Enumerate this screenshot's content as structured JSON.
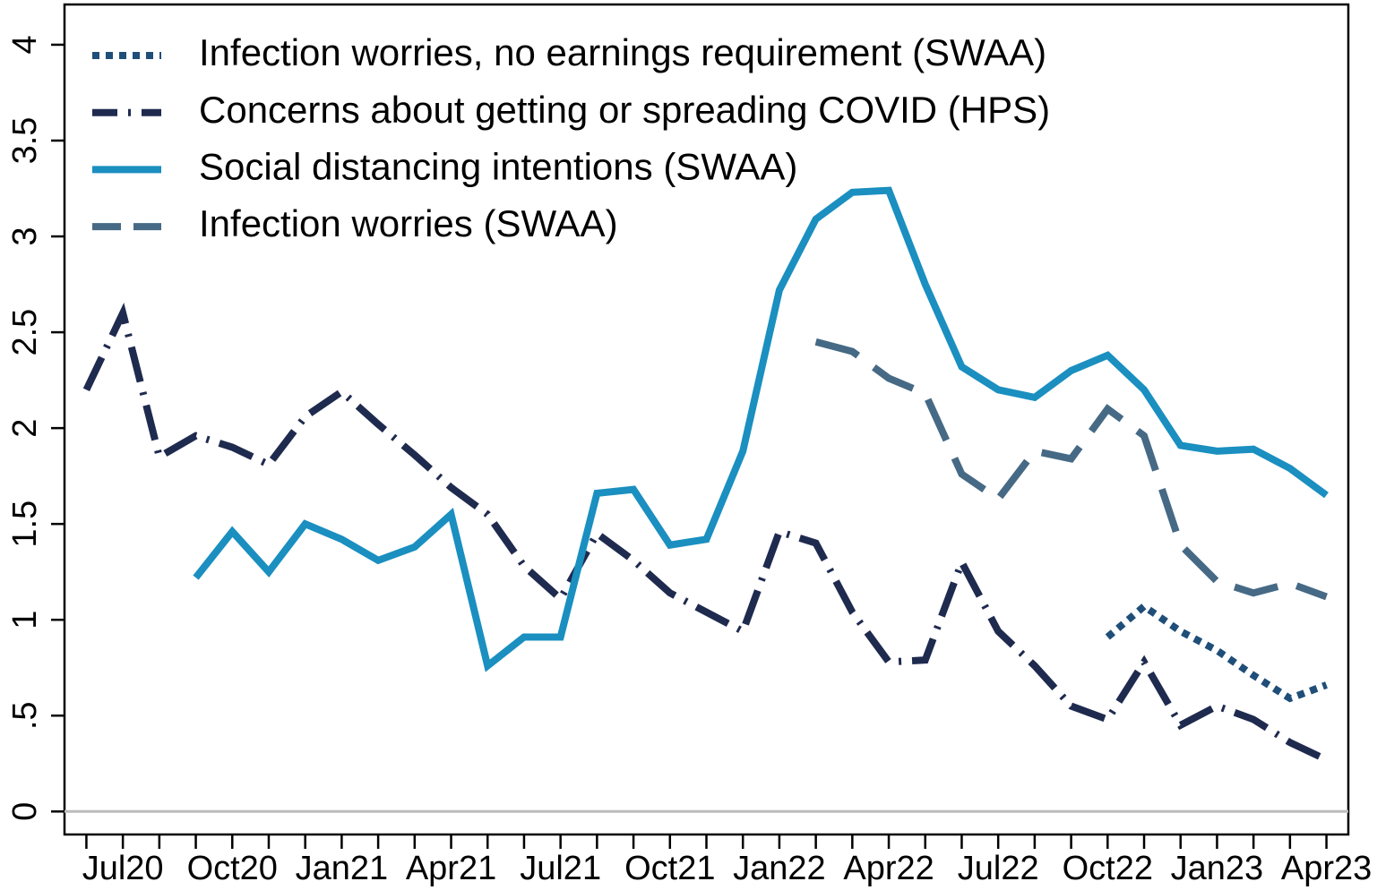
{
  "chart_data": {
    "type": "line",
    "categories": [
      null,
      "Jul20",
      null,
      null,
      "Oct20",
      null,
      null,
      "Jan21",
      null,
      null,
      "Apr21",
      null,
      null,
      "Jul21",
      null,
      null,
      "Oct21",
      null,
      null,
      "Jan22",
      null,
      null,
      "Apr22",
      null,
      null,
      "Jul22",
      null,
      null,
      "Oct22",
      null,
      null,
      "Jan23",
      null,
      null,
      "Apr23"
    ],
    "series": [
      {
        "name": "Infection worries, no earnings requirement (SWAA)",
        "color": "#1f4e79",
        "style": "dotted",
        "values": [
          null,
          null,
          null,
          null,
          null,
          null,
          null,
          null,
          null,
          null,
          null,
          null,
          null,
          null,
          null,
          null,
          null,
          null,
          null,
          null,
          null,
          null,
          null,
          null,
          null,
          null,
          null,
          null,
          0.91,
          1.07,
          0.94,
          0.84,
          0.71,
          0.59,
          0.66
        ]
      },
      {
        "name": "Concerns about getting or spreading COVID (HPS)",
        "color": "#1f2a4f",
        "style": "dashdot",
        "values": [
          2.2,
          2.6,
          1.85,
          1.96,
          1.9,
          1.81,
          2.06,
          2.19,
          2.02,
          1.86,
          1.69,
          1.55,
          1.28,
          1.11,
          1.45,
          1.31,
          1.14,
          1.04,
          0.94,
          1.46,
          1.4,
          1.04,
          0.78,
          0.79,
          1.3,
          0.94,
          0.76,
          0.55,
          0.48,
          0.78,
          0.45,
          0.55,
          0.48,
          0.36,
          0.27
        ]
      },
      {
        "name": "Social distancing intentions (SWAA)",
        "color": "#1a8fc0",
        "style": "solid",
        "values": [
          null,
          null,
          null,
          1.22,
          1.46,
          1.25,
          1.5,
          1.42,
          1.31,
          1.38,
          1.55,
          0.76,
          0.91,
          0.91,
          1.66,
          1.68,
          1.39,
          1.42,
          1.88,
          2.72,
          3.09,
          3.23,
          3.24,
          2.75,
          2.32,
          2.2,
          2.16,
          2.3,
          2.38,
          2.2,
          1.91,
          1.88,
          1.89,
          1.79,
          1.65
        ]
      },
      {
        "name": "Infection worries (SWAA)",
        "color": "#466a85",
        "style": "dashed",
        "values": [
          null,
          null,
          null,
          null,
          null,
          null,
          null,
          null,
          null,
          null,
          null,
          null,
          null,
          null,
          null,
          null,
          null,
          null,
          null,
          null,
          2.45,
          2.4,
          2.26,
          2.18,
          1.76,
          1.63,
          1.88,
          1.84,
          2.1,
          1.96,
          1.39,
          1.2,
          1.14,
          1.19,
          1.12
        ]
      }
    ],
    "ylim": [
      -0.12,
      4.21
    ],
    "yticks": [
      0,
      {
        "value": 0.5,
        "label": ".5"
      },
      1,
      1.5,
      2,
      2.5,
      3,
      3.5,
      4
    ],
    "zero_line": true,
    "zero_line_color": "#bbbbbb",
    "legend": "top-left"
  }
}
